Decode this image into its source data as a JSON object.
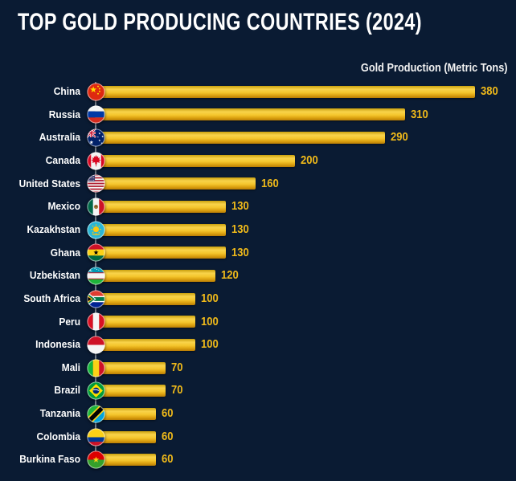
{
  "header": {
    "title": "TOP GOLD PRODUCING COUNTRIES (2024)"
  },
  "chart_data": {
    "type": "bar",
    "orientation": "horizontal",
    "title": "TOP GOLD PRODUCING COUNTRIES (2024)",
    "axis_label": "Gold Production (Metric Tons)",
    "unit": "Metric Tons",
    "xlim": [
      0,
      380
    ],
    "grid": false,
    "legend": false,
    "categories": [
      "China",
      "Russia",
      "Australia",
      "Canada",
      "United States",
      "Mexico",
      "Kazakhstan",
      "Ghana",
      "Uzbekistan",
      "South Africa",
      "Peru",
      "Indonesia",
      "Mali",
      "Brazil",
      "Tanzania",
      "Colombia",
      "Burkina Faso"
    ],
    "values": [
      380,
      310,
      290,
      200,
      160,
      130,
      130,
      130,
      120,
      100,
      100,
      100,
      70,
      70,
      60,
      60,
      60
    ],
    "flag_icons": [
      "china-flag",
      "russia-flag",
      "australia-flag",
      "canada-flag",
      "usa-flag",
      "mexico-flag",
      "kazakhstan-flag",
      "ghana-flag",
      "uzbekistan-flag",
      "south-africa-flag",
      "peru-flag",
      "indonesia-flag",
      "mali-flag",
      "brazil-flag",
      "tanzania-flag",
      "colombia-flag",
      "burkina-faso-flag"
    ],
    "colors": {
      "background": "#0a1b33",
      "bar_gradient": [
        "#caa00e",
        "#f8d34a",
        "#f5c62e",
        "#b97d05"
      ],
      "value_label": "#efb91a",
      "country_label": "#ffffff",
      "title": "#ffffff",
      "axis_line": "#8e959f"
    }
  }
}
